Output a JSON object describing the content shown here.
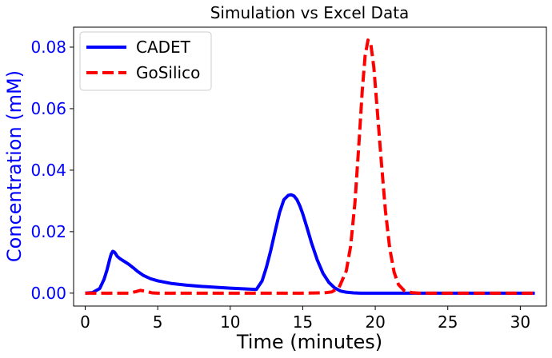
{
  "chart_data": {
    "type": "line",
    "title": "Simulation vs Excel Data",
    "xlabel": "Time (minutes)",
    "ylabel": "Concentration (mM)",
    "xlim": [
      -0.8,
      31.8
    ],
    "ylim": [
      -0.0042,
      0.0865
    ],
    "xticks": [
      0,
      5,
      10,
      15,
      20,
      25,
      30
    ],
    "yticks": [
      0.0,
      0.02,
      0.04,
      0.06,
      0.08
    ],
    "ytick_labels": [
      "0.00",
      "0.02",
      "0.04",
      "0.06",
      "0.08"
    ],
    "grid": false,
    "legend_position": "top-left",
    "series": [
      {
        "name": "CADET",
        "color": "#0000ff",
        "style": "solid",
        "x": [
          0,
          0.5,
          1.0,
          1.3,
          1.5,
          1.7,
          1.8,
          1.9,
          2.0,
          2.1,
          2.2,
          2.4,
          2.6,
          2.8,
          3.0,
          3.3,
          3.6,
          4.0,
          4.5,
          5.0,
          6.0,
          7.0,
          8.0,
          9.0,
          10.0,
          11.0,
          11.8,
          12.2,
          12.5,
          12.8,
          13.1,
          13.4,
          13.7,
          14.0,
          14.2,
          14.4,
          14.6,
          14.8,
          15.0,
          15.3,
          15.6,
          16.0,
          16.4,
          16.8,
          17.2,
          17.6,
          18.0,
          18.5,
          19.0,
          20.0,
          22.0,
          25.0,
          28.0,
          31.0
        ],
        "y": [
          0.0,
          0.0002,
          0.0015,
          0.0045,
          0.0075,
          0.0112,
          0.0128,
          0.0136,
          0.0134,
          0.0128,
          0.012,
          0.0112,
          0.0106,
          0.01,
          0.0094,
          0.0083,
          0.0071,
          0.0058,
          0.0047,
          0.004,
          0.0031,
          0.0026,
          0.0022,
          0.0019,
          0.0016,
          0.0014,
          0.0012,
          0.004,
          0.0085,
          0.014,
          0.0202,
          0.0262,
          0.0304,
          0.0318,
          0.032,
          0.0316,
          0.0304,
          0.0284,
          0.0258,
          0.0212,
          0.0164,
          0.0108,
          0.0064,
          0.0035,
          0.0017,
          0.0007,
          0.0003,
          0.0001,
          0.0,
          0.0,
          0.0,
          0.0,
          0.0,
          0.0
        ]
      },
      {
        "name": "GoSilico",
        "color": "#ff0000",
        "style": "dashed",
        "x": [
          0,
          3.0,
          3.5,
          3.8,
          4.2,
          4.6,
          5.0,
          10.0,
          15.0,
          16.5,
          17.0,
          17.5,
          18.0,
          18.3,
          18.6,
          18.9,
          19.1,
          19.3,
          19.5,
          19.7,
          19.9,
          20.1,
          20.4,
          20.7,
          21.0,
          21.3,
          21.6,
          22.0,
          22.5,
          23.0,
          25.0,
          28.0,
          31.0
        ],
        "y": [
          0.0,
          0.0,
          0.0005,
          0.0009,
          0.0006,
          0.0001,
          0.0,
          0.0,
          0.0,
          0.0001,
          0.0004,
          0.0018,
          0.0072,
          0.0152,
          0.0295,
          0.0505,
          0.0656,
          0.0772,
          0.0823,
          0.0808,
          0.0735,
          0.0618,
          0.0438,
          0.0268,
          0.0145,
          0.0068,
          0.0028,
          0.0008,
          0.0002,
          0.0,
          0.0,
          0.0,
          0.0
        ]
      }
    ]
  }
}
